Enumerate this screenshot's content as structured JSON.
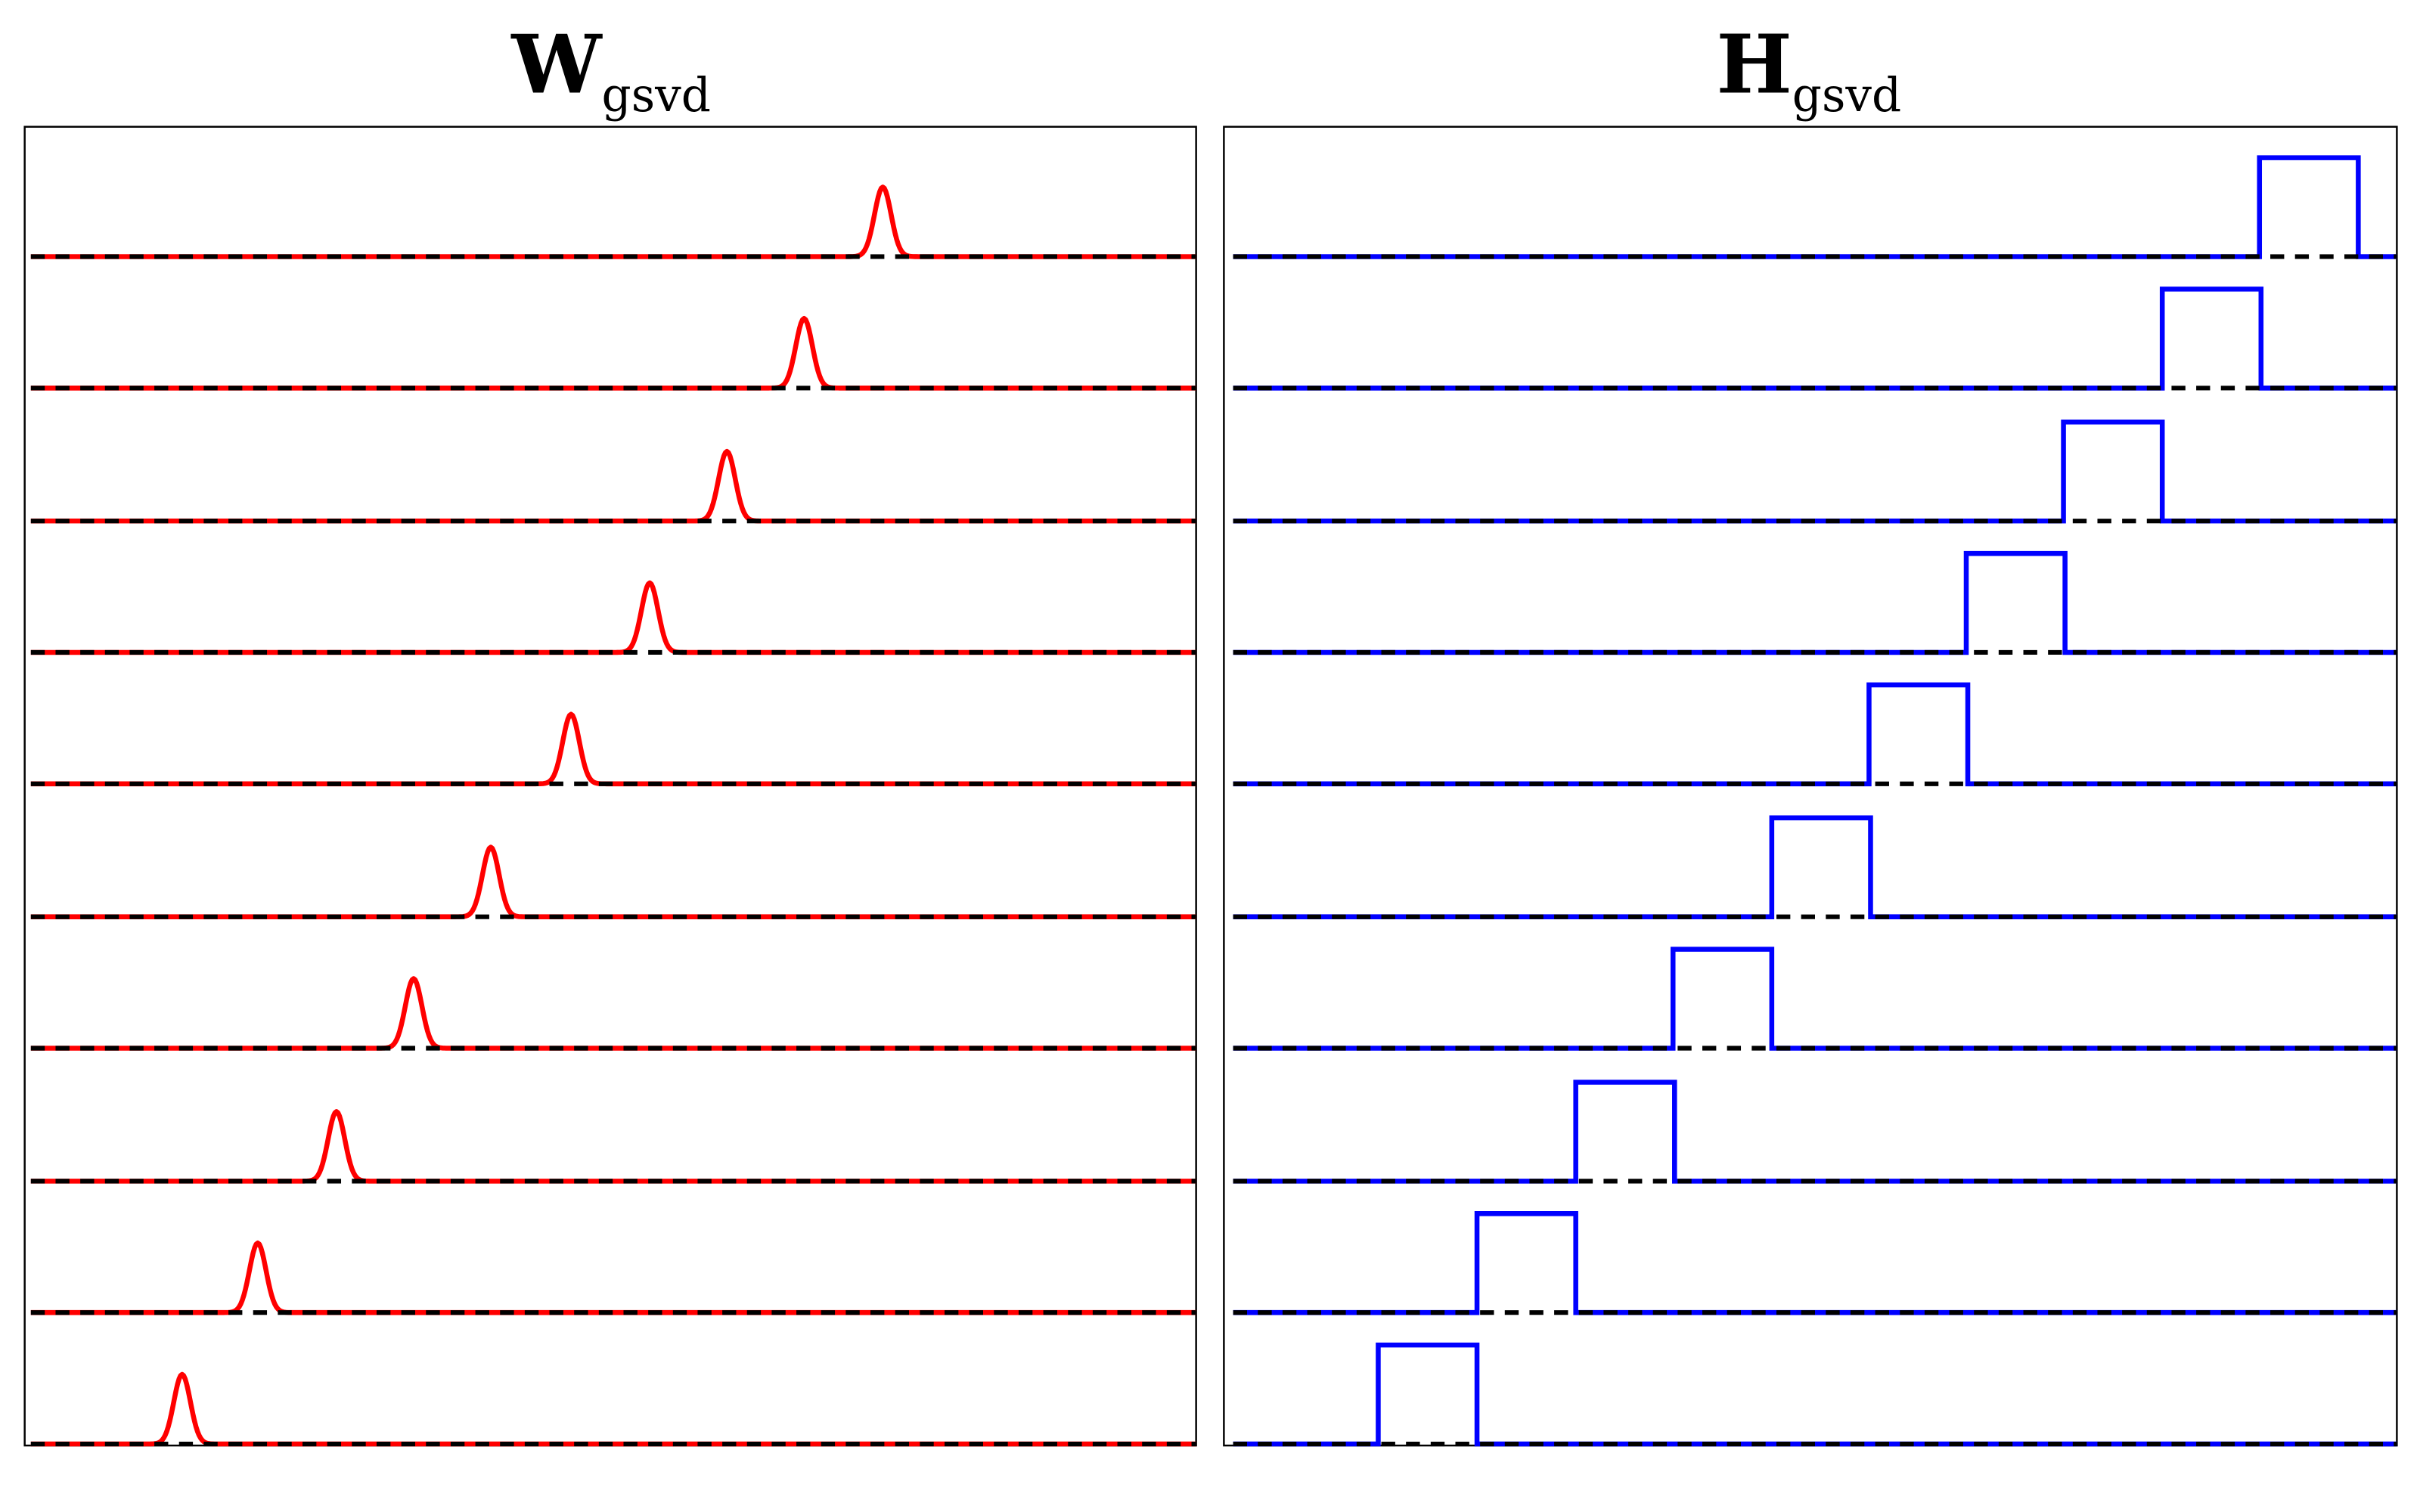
{
  "colors": {
    "left_curve": "#ff0000",
    "right_curve": "#0000ff",
    "baseline": "#000000",
    "frame": "#000000",
    "background": "#ffffff"
  },
  "chart_data": [
    {
      "type": "line",
      "title": "W",
      "title_subscript": "gsvd",
      "style": "gaussian",
      "rows": 10,
      "centers": [
        118,
        167,
        218,
        268,
        318,
        370,
        421,
        471,
        521,
        572
      ],
      "pulse_width": 14,
      "baseline_dashed": true,
      "axes_ticks": "none",
      "grid": false,
      "legend": "none"
    },
    {
      "type": "line",
      "title": "H",
      "title_subscript": "gsvd",
      "style": "rectangular",
      "rows": 10,
      "starts": [
        893,
        957,
        1021,
        1084,
        1148,
        1211,
        1274,
        1337,
        1401,
        1464
      ],
      "pulse_width": 64,
      "baseline_dashed": true,
      "axes_ticks": "none",
      "grid": false,
      "legend": "none"
    }
  ]
}
